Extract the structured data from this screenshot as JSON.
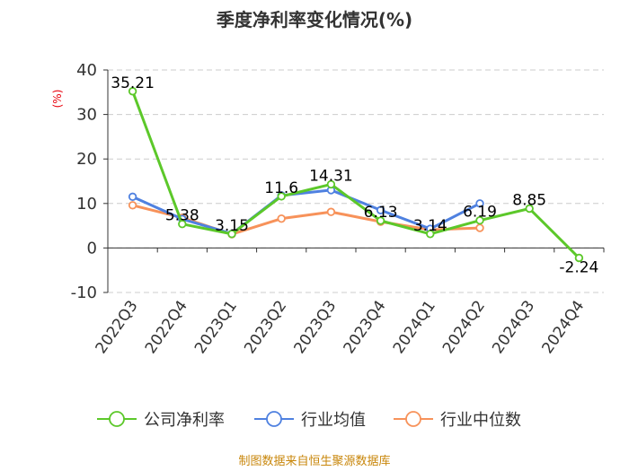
{
  "chart_data": {
    "type": "line",
    "title": "季度净利率变化情况(%)",
    "ylabel": "(%)",
    "xlabel": "",
    "categories": [
      "2022Q3",
      "2022Q4",
      "2023Q1",
      "2023Q2",
      "2023Q3",
      "2023Q4",
      "2024Q1",
      "2024Q2",
      "2024Q3",
      "2024Q4"
    ],
    "ylim": [
      -10,
      40
    ],
    "yticks": [
      -10,
      0,
      10,
      20,
      30,
      40
    ],
    "grid": true,
    "legend_position": "bottom",
    "series": [
      {
        "name": "公司净利率",
        "color": "#5cc82a",
        "values": [
          35.21,
          5.38,
          3.15,
          11.6,
          14.31,
          6.13,
          3.14,
          6.19,
          8.85,
          -2.24
        ],
        "labels": [
          "35.21",
          "5.38",
          "3.15",
          "11.6",
          "14.31",
          "6.13",
          "3.14",
          "6.19",
          "8.85",
          "-2.24"
        ]
      },
      {
        "name": "行业均值",
        "color": "#4f81e0",
        "values": [
          11.5,
          6.5,
          3.2,
          11.8,
          13.0,
          8.5,
          4.3,
          10.0,
          null,
          null
        ]
      },
      {
        "name": "行业中位数",
        "color": "#f7925a",
        "values": [
          9.6,
          6.8,
          3.1,
          6.6,
          8.1,
          5.9,
          4.1,
          4.5,
          null,
          null
        ]
      }
    ]
  },
  "source": "制图数据来自恒生聚源数据库"
}
